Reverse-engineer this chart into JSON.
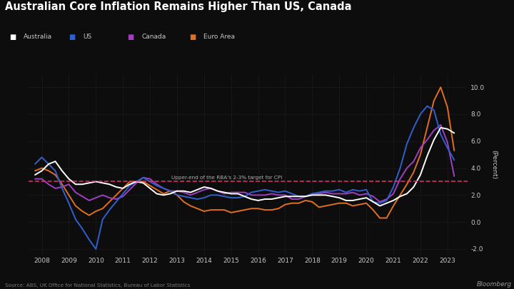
{
  "title": "Australian Core Inflation Remains Higher Than US, Canada",
  "source": "Source: ABS, UK Office for National Statistics, Bureau of Labor Statistics",
  "ylabel": "(Percent)",
  "background_color": "#0d0d0d",
  "text_color": "#c8c8c8",
  "grid_color": "#333333",
  "dashed_line_y": 3.0,
  "dashed_line_color": "#e0306a",
  "dashed_line_label": "Upper-end of the RBA's 2-3% target for CPI",
  "ylim": [
    -2.5,
    11.0
  ],
  "yticks": [
    -2.0,
    0.0,
    2.0,
    4.0,
    6.0,
    8.0,
    10.0
  ],
  "xlim": [
    2007.5,
    2023.75
  ],
  "series_order": [
    "Euro Area",
    "Canada",
    "US",
    "Australia"
  ],
  "series": {
    "Australia": {
      "color": "#ffffff",
      "lw": 1.4,
      "x": [
        2007.75,
        2008.0,
        2008.25,
        2008.5,
        2008.75,
        2009.0,
        2009.25,
        2009.5,
        2009.75,
        2010.0,
        2010.25,
        2010.5,
        2010.75,
        2011.0,
        2011.25,
        2011.5,
        2011.75,
        2012.0,
        2012.25,
        2012.5,
        2012.75,
        2013.0,
        2013.25,
        2013.5,
        2013.75,
        2014.0,
        2014.25,
        2014.5,
        2014.75,
        2015.0,
        2015.25,
        2015.5,
        2015.75,
        2016.0,
        2016.25,
        2016.5,
        2016.75,
        2017.0,
        2017.25,
        2017.5,
        2017.75,
        2018.0,
        2018.25,
        2018.5,
        2018.75,
        2019.0,
        2019.25,
        2019.5,
        2019.75,
        2020.0,
        2020.25,
        2020.5,
        2020.75,
        2021.0,
        2021.25,
        2021.5,
        2021.75,
        2022.0,
        2022.25,
        2022.5,
        2022.75,
        2023.0,
        2023.25
      ],
      "y": [
        3.5,
        3.8,
        4.3,
        4.5,
        3.8,
        3.2,
        2.8,
        2.8,
        2.9,
        3.0,
        2.9,
        2.8,
        2.6,
        2.5,
        2.8,
        3.0,
        2.9,
        2.5,
        2.1,
        2.0,
        2.1,
        2.3,
        2.3,
        2.2,
        2.4,
        2.6,
        2.5,
        2.3,
        2.2,
        2.1,
        2.1,
        1.9,
        1.7,
        1.6,
        1.7,
        1.7,
        1.8,
        1.9,
        1.9,
        1.9,
        1.9,
        2.0,
        2.0,
        2.0,
        1.9,
        1.8,
        1.6,
        1.6,
        1.7,
        1.8,
        1.5,
        1.2,
        1.4,
        1.6,
        1.9,
        2.1,
        2.6,
        3.5,
        4.9,
        6.1,
        7.0,
        6.9,
        6.6
      ]
    },
    "US": {
      "color": "#3060d0",
      "lw": 1.4,
      "x": [
        2007.75,
        2008.0,
        2008.25,
        2008.5,
        2008.75,
        2009.0,
        2009.25,
        2009.5,
        2009.75,
        2010.0,
        2010.25,
        2010.5,
        2010.75,
        2011.0,
        2011.25,
        2011.5,
        2011.75,
        2012.0,
        2012.25,
        2012.5,
        2012.75,
        2013.0,
        2013.25,
        2013.5,
        2013.75,
        2014.0,
        2014.25,
        2014.5,
        2014.75,
        2015.0,
        2015.25,
        2015.5,
        2015.75,
        2016.0,
        2016.25,
        2016.5,
        2016.75,
        2017.0,
        2017.25,
        2017.5,
        2017.75,
        2018.0,
        2018.25,
        2018.5,
        2018.75,
        2019.0,
        2019.25,
        2019.5,
        2019.75,
        2020.0,
        2020.25,
        2020.5,
        2020.75,
        2021.0,
        2021.25,
        2021.5,
        2021.75,
        2022.0,
        2022.25,
        2022.5,
        2022.75,
        2023.0,
        2023.25
      ],
      "y": [
        4.3,
        4.8,
        4.3,
        3.8,
        2.5,
        1.4,
        0.2,
        -0.5,
        -1.3,
        -2.0,
        0.2,
        0.9,
        1.5,
        2.1,
        2.7,
        3.0,
        3.3,
        3.0,
        2.7,
        2.5,
        2.3,
        2.0,
        1.9,
        1.8,
        1.7,
        1.8,
        2.0,
        2.0,
        1.9,
        1.8,
        1.8,
        1.9,
        2.2,
        2.3,
        2.4,
        2.3,
        2.2,
        2.3,
        2.1,
        1.9,
        1.9,
        2.1,
        2.2,
        2.3,
        2.3,
        2.4,
        2.2,
        2.4,
        2.3,
        2.4,
        1.5,
        1.4,
        1.6,
        2.6,
        4.0,
        5.8,
        7.0,
        8.0,
        8.6,
        8.3,
        6.5,
        5.5,
        4.6
      ]
    },
    "Canada": {
      "color": "#a040c0",
      "lw": 1.4,
      "x": [
        2007.75,
        2008.0,
        2008.25,
        2008.5,
        2008.75,
        2009.0,
        2009.25,
        2009.5,
        2009.75,
        2010.0,
        2010.25,
        2010.5,
        2010.75,
        2011.0,
        2011.25,
        2011.5,
        2011.75,
        2012.0,
        2012.25,
        2012.5,
        2012.75,
        2013.0,
        2013.25,
        2013.5,
        2013.75,
        2014.0,
        2014.25,
        2014.5,
        2014.75,
        2015.0,
        2015.25,
        2015.5,
        2015.75,
        2016.0,
        2016.25,
        2016.5,
        2016.75,
        2017.0,
        2017.25,
        2017.5,
        2017.75,
        2018.0,
        2018.25,
        2018.5,
        2018.75,
        2019.0,
        2019.25,
        2019.5,
        2019.75,
        2020.0,
        2020.25,
        2020.5,
        2020.75,
        2021.0,
        2021.25,
        2021.5,
        2021.75,
        2022.0,
        2022.25,
        2022.5,
        2022.75,
        2023.0,
        2023.25
      ],
      "y": [
        3.2,
        3.2,
        2.8,
        2.5,
        2.6,
        2.8,
        2.2,
        1.9,
        1.6,
        1.8,
        2.0,
        1.8,
        1.7,
        1.9,
        2.4,
        2.9,
        3.3,
        3.2,
        2.8,
        2.5,
        2.3,
        2.3,
        2.2,
        2.0,
        2.2,
        2.4,
        2.5,
        2.3,
        2.1,
        2.2,
        2.2,
        2.2,
        2.0,
        2.0,
        2.0,
        2.1,
        2.0,
        2.0,
        1.7,
        1.7,
        1.9,
        2.1,
        2.1,
        2.2,
        2.1,
        2.1,
        2.1,
        2.2,
        2.0,
        2.1,
        1.9,
        1.5,
        1.7,
        2.1,
        3.2,
        4.0,
        4.5,
        5.5,
        6.1,
        6.8,
        7.2,
        5.9,
        3.4
      ]
    },
    "Euro Area": {
      "color": "#e07020",
      "lw": 1.4,
      "x": [
        2007.75,
        2008.0,
        2008.25,
        2008.5,
        2008.75,
        2009.0,
        2009.25,
        2009.5,
        2009.75,
        2010.0,
        2010.25,
        2010.5,
        2010.75,
        2011.0,
        2011.25,
        2011.5,
        2011.75,
        2012.0,
        2012.25,
        2012.5,
        2012.75,
        2013.0,
        2013.25,
        2013.5,
        2013.75,
        2014.0,
        2014.25,
        2014.5,
        2014.75,
        2015.0,
        2015.25,
        2015.5,
        2015.75,
        2016.0,
        2016.25,
        2016.5,
        2016.75,
        2017.0,
        2017.25,
        2017.5,
        2017.75,
        2018.0,
        2018.25,
        2018.5,
        2018.75,
        2019.0,
        2019.25,
        2019.5,
        2019.75,
        2020.0,
        2020.25,
        2020.5,
        2020.75,
        2021.0,
        2021.25,
        2021.5,
        2021.75,
        2022.0,
        2022.25,
        2022.5,
        2022.75,
        2023.0,
        2023.25
      ],
      "y": [
        3.8,
        4.0,
        3.8,
        3.5,
        2.8,
        2.0,
        1.2,
        0.8,
        0.5,
        0.8,
        1.0,
        1.5,
        2.0,
        2.5,
        3.0,
        3.0,
        3.0,
        2.7,
        2.4,
        2.1,
        2.3,
        2.0,
        1.5,
        1.2,
        1.0,
        0.8,
        0.9,
        0.9,
        0.9,
        0.7,
        0.8,
        0.9,
        1.0,
        1.0,
        0.9,
        0.9,
        1.0,
        1.3,
        1.4,
        1.4,
        1.6,
        1.5,
        1.1,
        1.2,
        1.3,
        1.4,
        1.4,
        1.2,
        1.3,
        1.4,
        0.9,
        0.3,
        0.3,
        1.2,
        2.0,
        2.8,
        3.7,
        5.0,
        7.0,
        9.0,
        10.0,
        8.5,
        5.3
      ]
    }
  },
  "legend": [
    {
      "label": "Australia",
      "color": "#ffffff"
    },
    {
      "label": "US",
      "color": "#3060d0"
    },
    {
      "label": "Canada",
      "color": "#a040c0"
    },
    {
      "label": "Euro Area",
      "color": "#e07020"
    }
  ]
}
